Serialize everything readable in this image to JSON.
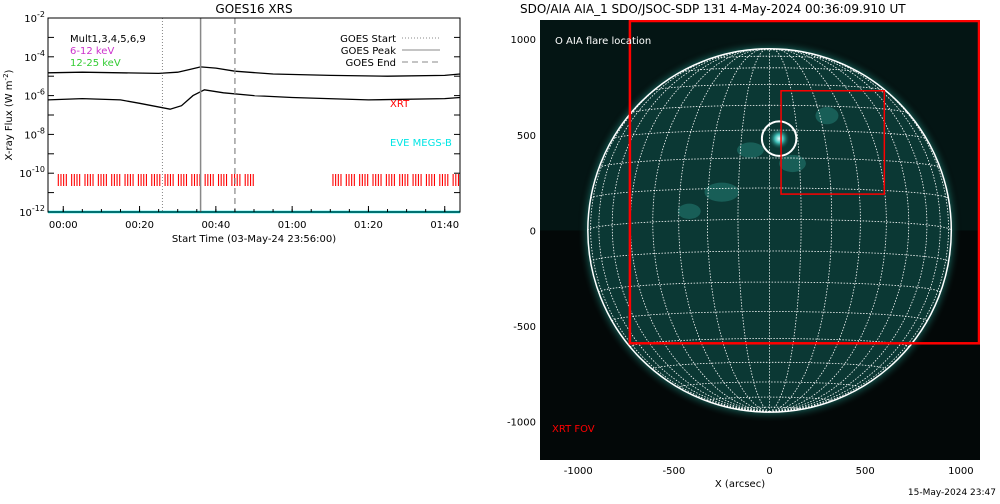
{
  "chart_data": [
    {
      "type": "line",
      "title": "GOES16 XRS",
      "xlabel": "Start Time (03-May-24 23:56:00)",
      "ylabel": "X-ray Flux (W m^-2)",
      "y_scale": "log",
      "ylim": [
        1e-12,
        0.01
      ],
      "y_tick_labels": [
        "10^-2",
        "10^-4",
        "10^-6",
        "10^-8",
        "10^-10",
        "10^-12"
      ],
      "xlim": [
        "23:56",
        "01:44"
      ],
      "x_tick_labels": [
        "00:00",
        "00:20",
        "00:40",
        "01:00",
        "01:20",
        "01:40"
      ],
      "legend_left": [
        {
          "label": "Mult1,3,4,5,6,9",
          "color": "#000000"
        },
        {
          "label": "6-12 keV",
          "color": "#cc33cc"
        },
        {
          "label": "12-25 keV",
          "color": "#33cc33"
        }
      ],
      "legend_right": [
        {
          "label": "GOES Start",
          "style": "dotted"
        },
        {
          "label": "GOES Peak",
          "style": "solid"
        },
        {
          "label": "GOES End",
          "style": "dashed"
        }
      ],
      "annotations": [
        {
          "text": "XRT",
          "color": "#ff0000"
        },
        {
          "text": "EVE MEGS-B",
          "color": "#00e5e5"
        }
      ],
      "event_markers": {
        "start": "00:26",
        "peak": "00:36",
        "end": "00:45"
      },
      "series": [
        {
          "name": "upper channel",
          "color": "#000000",
          "x": [
            "23:56",
            "00:05",
            "00:15",
            "00:25",
            "00:30",
            "00:33",
            "00:36",
            "00:40",
            "00:45",
            "00:55",
            "01:10",
            "01:25",
            "01:40",
            "01:44"
          ],
          "y": [
            1.5e-05,
            1.6e-05,
            1.5e-05,
            1.4e-05,
            1.6e-05,
            2.2e-05,
            3e-05,
            2.6e-05,
            1.8e-05,
            1.3e-05,
            1.1e-05,
            1e-05,
            1.1e-05,
            1.3e-05
          ]
        },
        {
          "name": "lower channel",
          "color": "#000000",
          "x": [
            "23:56",
            "00:05",
            "00:15",
            "00:20",
            "00:28",
            "00:31",
            "00:34",
            "00:37",
            "00:42",
            "00:50",
            "01:00",
            "01:20",
            "01:40",
            "01:44"
          ],
          "y": [
            6e-07,
            7e-07,
            6e-07,
            4e-07,
            2e-07,
            3e-07,
            1e-06,
            2e-06,
            1.4e-06,
            1e-06,
            8e-07,
            6e-07,
            7e-07,
            8e-07
          ]
        },
        {
          "name": "EVE MEGS-B",
          "color": "#00e5e5",
          "x": [
            "23:56",
            "01:44"
          ],
          "y": [
            1e-12,
            1e-12
          ]
        }
      ],
      "xrt_coverage": [
        [
          "23:58",
          "00:50"
        ],
        [
          "01:10",
          "01:44"
        ]
      ],
      "grid": false
    },
    {
      "type": "scatter",
      "title": "SDO/AIA AIA_1 SDO/JSOC-SDP 131  4-May-2024 00:36:09.910 UT",
      "xlabel": "X (arcsec)",
      "ylabel": "",
      "xlim": [
        -1200,
        1100
      ],
      "ylim": [
        -1200,
        1100
      ],
      "x_tick_labels": [
        "-1000",
        "-500",
        "0",
        "500",
        "1000"
      ],
      "y_tick_labels": [
        "1000",
        "500",
        "0",
        "-500",
        "-1000"
      ],
      "legend": [
        {
          "label": "O AIA flare location",
          "color": "#ffffff"
        }
      ],
      "annotations": [
        {
          "text": "XRT FOV",
          "color": "#ff0000"
        }
      ],
      "solar_radius_arcsec": 950,
      "flare_location": {
        "x": 50,
        "y": 480,
        "radius": 90
      },
      "xrt_fov_boxes": [
        {
          "x0": -730,
          "x1": 1100,
          "y0": -590,
          "y1": 1100,
          "color": "#ff0000"
        },
        {
          "x0": 60,
          "x1": 600,
          "y0": 190,
          "y1": 730,
          "color": "#ff0000"
        }
      ]
    }
  ],
  "footer_timestamp": "15-May-2024 23:47"
}
